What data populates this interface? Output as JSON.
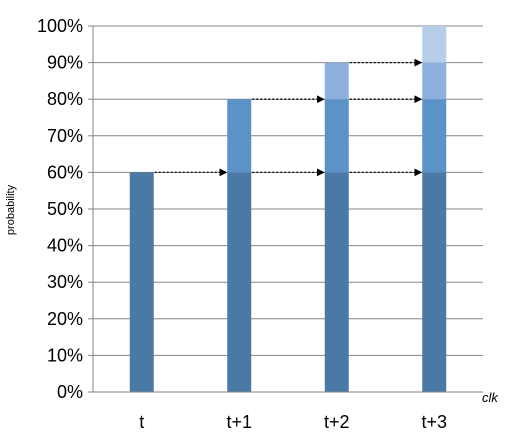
{
  "chart_data": {
    "type": "bar",
    "stacked": true,
    "categories": [
      "t",
      "t+1",
      "t+2",
      "t+3"
    ],
    "series": [
      {
        "values": [
          60,
          60,
          60,
          60
        ],
        "color": "#4a79a5"
      },
      {
        "values": [
          0,
          20,
          20,
          20
        ],
        "color": "#5b93c9"
      },
      {
        "values": [
          0,
          0,
          10,
          10
        ],
        "color": "#8db0dc"
      },
      {
        "values": [
          0,
          0,
          0,
          10
        ],
        "color": "#b8cde9"
      }
    ],
    "ylim": [
      0,
      100
    ],
    "yticks": [
      "0%",
      "10%",
      "20%",
      "30%",
      "40%",
      "50%",
      "60%",
      "70%",
      "80%",
      "90%",
      "100%"
    ],
    "ylabel": "probability",
    "xlabel": "clk",
    "grid": true,
    "arrows": [
      {
        "from": "t",
        "to": "t+1",
        "y": 60
      },
      {
        "from": "t+1",
        "to": "t+2",
        "y": 60
      },
      {
        "from": "t+2",
        "to": "t+3",
        "y": 60
      },
      {
        "from": "t+1",
        "to": "t+2",
        "y": 80
      },
      {
        "from": "t+2",
        "to": "t+3",
        "y": 80
      },
      {
        "from": "t+2",
        "to": "t+3",
        "y": 90
      }
    ],
    "colors": {
      "grid": "#868686",
      "axis": "#868686",
      "arrow": "#000000"
    }
  }
}
